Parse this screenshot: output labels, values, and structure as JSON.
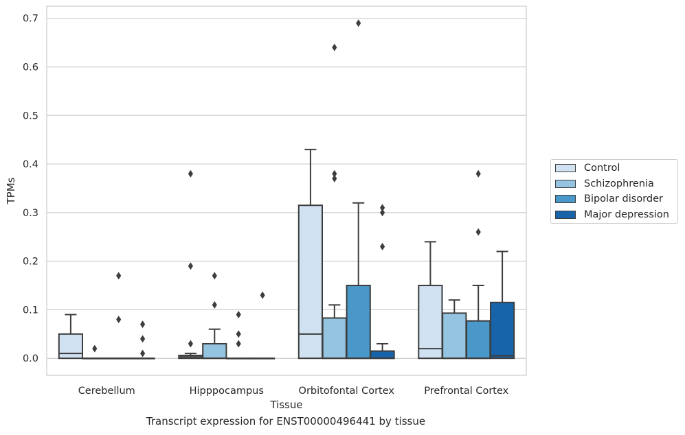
{
  "chart_data": {
    "type": "boxplot",
    "title": "",
    "caption": "Transcript expression for ENST00000496441 by tissue",
    "xlabel": "Tissue",
    "ylabel": "TPMs",
    "ylim": [
      -0.035,
      0.725
    ],
    "yticks": [
      0.0,
      0.1,
      0.2,
      0.3,
      0.4,
      0.5,
      0.6,
      0.7
    ],
    "ytick_labels": [
      "0.0",
      "0.1",
      "0.2",
      "0.3",
      "0.4",
      "0.5",
      "0.6",
      "0.7"
    ],
    "grid": "horizontal",
    "legend_position": "right",
    "categories": [
      "Cerebellum",
      "Hipppocampus",
      "Orbitofontal Cortex",
      "Prefrontal Cortex"
    ],
    "series": [
      {
        "name": "Control",
        "color": "#d0e1f2",
        "boxes": [
          {
            "q1": 0.0,
            "median": 0.01,
            "q3": 0.05,
            "whisker_low": 0.0,
            "whisker_high": 0.09,
            "outliers": []
          },
          {
            "q1": 0.0,
            "median": 0.003,
            "q3": 0.006,
            "whisker_low": 0.0,
            "whisker_high": 0.01,
            "outliers": [
              0.38,
              0.19,
              0.03
            ]
          },
          {
            "q1": 0.0,
            "median": 0.05,
            "q3": 0.315,
            "whisker_low": 0.0,
            "whisker_high": 0.43,
            "outliers": []
          },
          {
            "q1": 0.0,
            "median": 0.02,
            "q3": 0.15,
            "whisker_low": 0.0,
            "whisker_high": 0.24,
            "outliers": []
          }
        ]
      },
      {
        "name": "Schizophrenia",
        "color": "#94c4df",
        "boxes": [
          {
            "q1": 0.0,
            "median": 0.0,
            "q3": 0.0,
            "whisker_low": 0.0,
            "whisker_high": 0.0,
            "outliers": [
              0.02
            ]
          },
          {
            "q1": 0.0,
            "median": 0.0,
            "q3": 0.03,
            "whisker_low": 0.0,
            "whisker_high": 0.06,
            "outliers": [
              0.17,
              0.11
            ]
          },
          {
            "q1": 0.0,
            "median": 0.0,
            "q3": 0.083,
            "whisker_low": 0.0,
            "whisker_high": 0.11,
            "outliers": [
              0.64,
              0.38,
              0.37
            ]
          },
          {
            "q1": 0.0,
            "median": 0.0,
            "q3": 0.093,
            "whisker_low": 0.0,
            "whisker_high": 0.12,
            "outliers": []
          }
        ]
      },
      {
        "name": "Bipolar disorder",
        "color": "#4a98c9",
        "boxes": [
          {
            "q1": 0.0,
            "median": 0.0,
            "q3": 0.0,
            "whisker_low": 0.0,
            "whisker_high": 0.0,
            "outliers": [
              0.17,
              0.08
            ]
          },
          {
            "q1": 0.0,
            "median": 0.0,
            "q3": 0.0,
            "whisker_low": 0.0,
            "whisker_high": 0.0,
            "outliers": [
              0.09,
              0.05,
              0.03
            ]
          },
          {
            "q1": 0.0,
            "median": 0.0,
            "q3": 0.15,
            "whisker_low": 0.0,
            "whisker_high": 0.32,
            "outliers": [
              0.69
            ]
          },
          {
            "q1": 0.0,
            "median": 0.0,
            "q3": 0.077,
            "whisker_low": 0.0,
            "whisker_high": 0.15,
            "outliers": [
              0.38,
              0.26
            ]
          }
        ]
      },
      {
        "name": "Major depression",
        "color": "#1764ab",
        "boxes": [
          {
            "q1": 0.0,
            "median": 0.0,
            "q3": 0.0,
            "whisker_low": 0.0,
            "whisker_high": 0.0,
            "outliers": [
              0.07,
              0.04,
              0.01
            ]
          },
          {
            "q1": 0.0,
            "median": 0.0,
            "q3": 0.0,
            "whisker_low": 0.0,
            "whisker_high": 0.0,
            "outliers": [
              0.13
            ]
          },
          {
            "q1": 0.0,
            "median": 0.0,
            "q3": 0.015,
            "whisker_low": 0.0,
            "whisker_high": 0.03,
            "outliers": [
              0.31,
              0.3,
              0.23
            ]
          },
          {
            "q1": 0.0,
            "median": 0.005,
            "q3": 0.115,
            "whisker_low": 0.0,
            "whisker_high": 0.22,
            "outliers": []
          }
        ]
      }
    ]
  }
}
